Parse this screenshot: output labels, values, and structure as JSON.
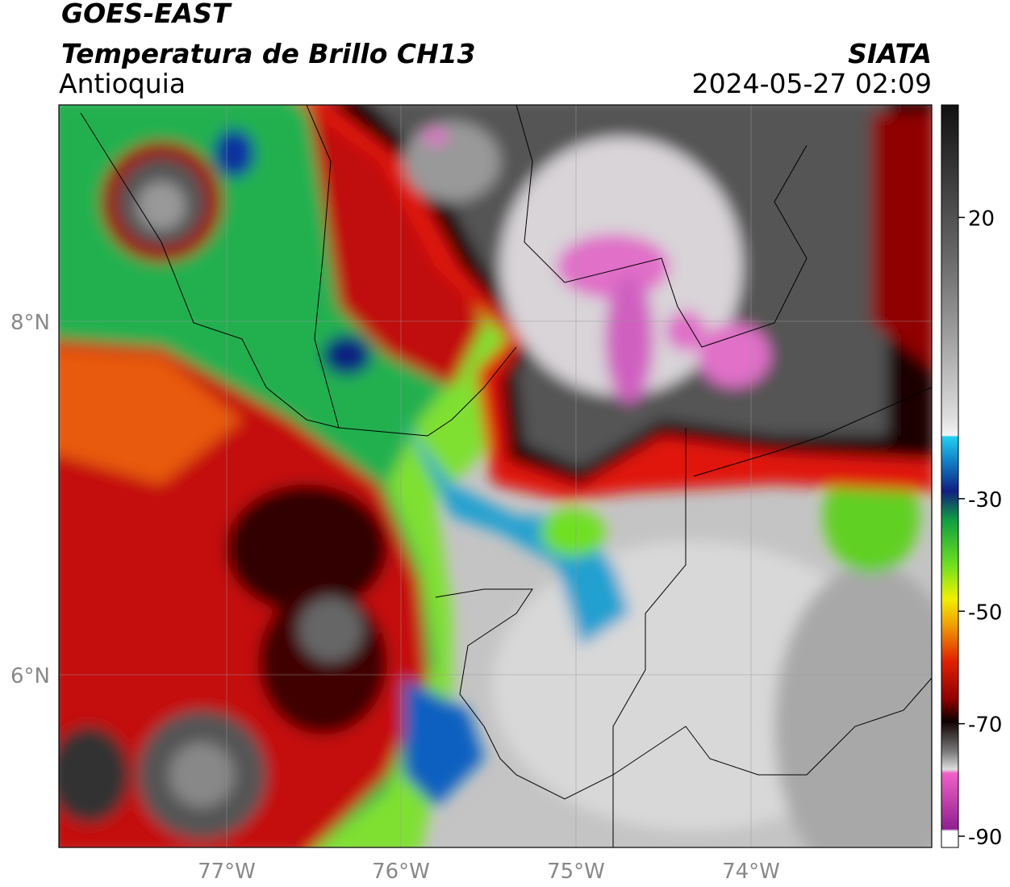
{
  "header": {
    "title": "GOES-EAST",
    "subtitle": "Temperatura de Brillo CH13",
    "region": "Antioquia",
    "source": "SIATA",
    "datetime": "2024-05-27 02:09"
  },
  "map": {
    "lat_labels": [
      "8°N",
      "6°N"
    ],
    "lon_labels": [
      "77°W",
      "76°W",
      "75°W",
      "74°W"
    ]
  },
  "colorbar": {
    "range": [
      -92,
      40
    ],
    "ticks": [
      20,
      -30,
      -50,
      -70,
      -90
    ]
  }
}
